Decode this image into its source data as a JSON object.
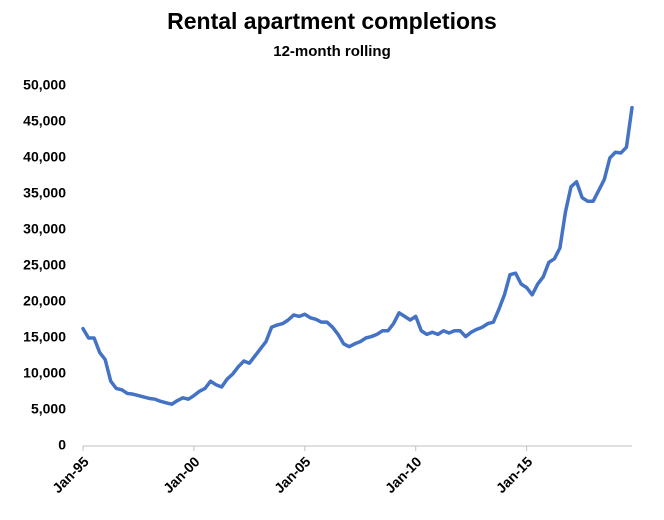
{
  "chart_data": {
    "type": "line",
    "title": "Rental apartment completions",
    "subtitle": "12-month rolling",
    "categories": [
      "Jan-95",
      null,
      null,
      null,
      null,
      null,
      null,
      null,
      null,
      null,
      null,
      null,
      null,
      null,
      null,
      null,
      null,
      null,
      null,
      null,
      "Jan-00",
      null,
      null,
      null,
      null,
      null,
      null,
      null,
      null,
      null,
      null,
      null,
      null,
      null,
      null,
      null,
      null,
      null,
      null,
      null,
      "Jan-05",
      null,
      null,
      null,
      null,
      null,
      null,
      null,
      null,
      null,
      null,
      null,
      null,
      null,
      null,
      null,
      null,
      null,
      null,
      null,
      "Jan-10",
      null,
      null,
      null,
      null,
      null,
      null,
      null,
      null,
      null,
      null,
      null,
      null,
      null,
      null,
      null,
      null,
      null,
      null,
      null,
      "Jan-15",
      null,
      null,
      null,
      null,
      null,
      null,
      null,
      null,
      null,
      null,
      null,
      null,
      null,
      null,
      null,
      null,
      null,
      null,
      null
    ],
    "values": [
      16300,
      15000,
      15000,
      13000,
      12000,
      9000,
      8000,
      7800,
      7300,
      7200,
      7000,
      6800,
      6600,
      6500,
      6200,
      6000,
      5800,
      6300,
      6700,
      6500,
      7000,
      7600,
      8000,
      9000,
      8500,
      8200,
      9300,
      10000,
      11000,
      11800,
      11500,
      12500,
      13500,
      14500,
      16500,
      16800,
      17000,
      17500,
      18200,
      18000,
      18300,
      17800,
      17600,
      17200,
      17200,
      16500,
      15500,
      14200,
      13800,
      14200,
      14500,
      15000,
      15200,
      15500,
      16000,
      16000,
      17000,
      18500,
      18000,
      17500,
      18000,
      16000,
      15500,
      15800,
      15500,
      16000,
      15700,
      16000,
      16000,
      15200,
      15800,
      16200,
      16500,
      17000,
      17200,
      19000,
      21000,
      23800,
      24000,
      22500,
      22000,
      21000,
      22500,
      23500,
      25500,
      26000,
      27500,
      32500,
      36000,
      36700,
      34500,
      34000,
      34000,
      35500,
      37000,
      40000,
      40800,
      40700,
      41500,
      47000
    ],
    "color": "#4472c4",
    "ylim": [
      0,
      50000
    ],
    "yticks": [
      0,
      {
        "value": 5000,
        "label": "5,000"
      },
      {
        "value": 10000,
        "label": "10,000"
      },
      {
        "value": 15000,
        "label": "15,000"
      },
      {
        "value": 20000,
        "label": "20,000"
      },
      {
        "value": 25000,
        "label": "25,000"
      },
      {
        "value": 30000,
        "label": "30,000"
      },
      {
        "value": 35000,
        "label": "35,000"
      },
      {
        "value": 40000,
        "label": "40,000"
      },
      {
        "value": 45000,
        "label": "45,000"
      },
      {
        "value": 50000,
        "label": "50,000"
      }
    ],
    "grid": false
  }
}
